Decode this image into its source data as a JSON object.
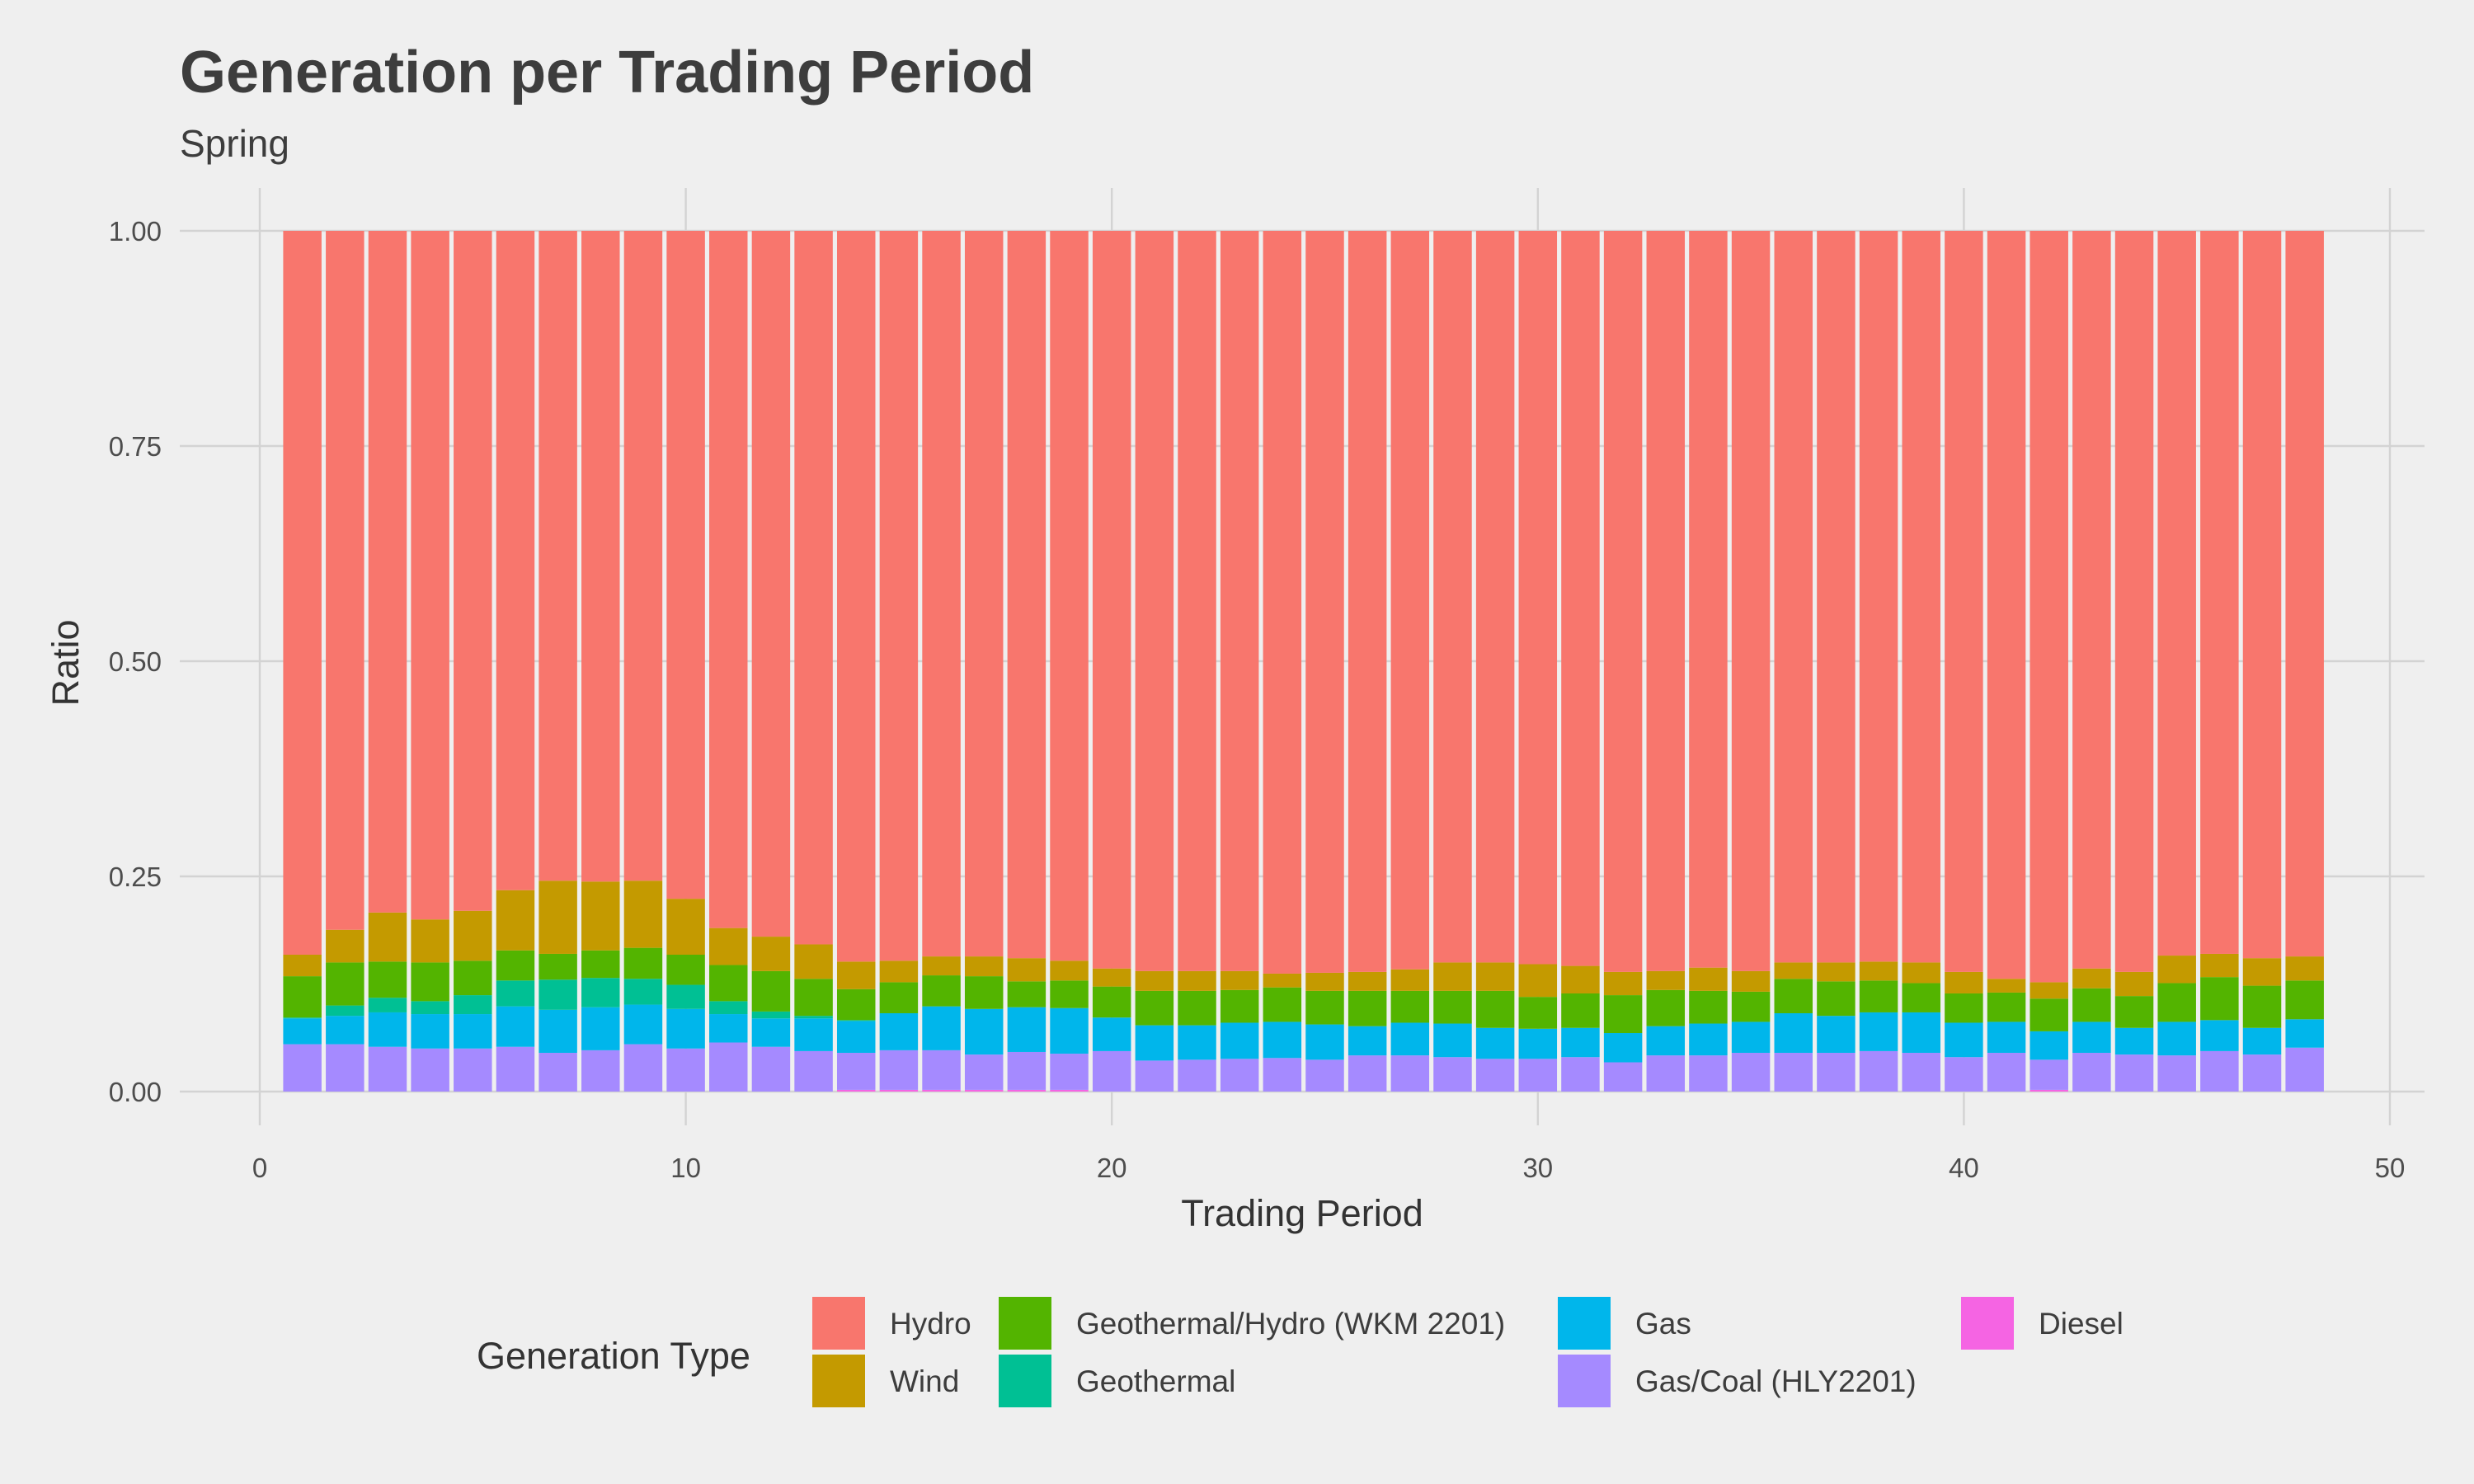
{
  "chart_data": {
    "type": "bar",
    "stacked": true,
    "title": "Generation per Trading Period",
    "subtitle": "Spring",
    "xlabel": "Trading Period",
    "ylabel": "Ratio",
    "xlim": [
      0,
      50
    ],
    "ylim": [
      0,
      1
    ],
    "x_ticks": [
      "0",
      "10",
      "20",
      "30",
      "40",
      "50"
    ],
    "y_ticks": [
      "0.00",
      "0.25",
      "0.50",
      "0.75",
      "1.00"
    ],
    "grid": true,
    "legend_position": "bottom",
    "legend_title": "Generation Type",
    "categories": [
      1,
      2,
      3,
      4,
      5,
      6,
      7,
      8,
      9,
      10,
      11,
      12,
      13,
      14,
      15,
      16,
      17,
      18,
      19,
      20,
      21,
      22,
      23,
      24,
      25,
      26,
      27,
      28,
      29,
      30,
      31,
      32,
      33,
      34,
      35,
      36,
      37,
      38,
      39,
      40,
      41,
      42,
      43,
      44,
      45,
      46,
      47,
      48
    ],
    "series": [
      {
        "name": "Diesel",
        "color": "#F564E3",
        "values": [
          0,
          0,
          0,
          0,
          0,
          0,
          0,
          0,
          0,
          0,
          0,
          0,
          0,
          0.002,
          0.002,
          0.002,
          0.002,
          0.002,
          0.002,
          0,
          0,
          0,
          0,
          0,
          0,
          0,
          0,
          0,
          0,
          0,
          0,
          0,
          0,
          0,
          0,
          0,
          0,
          0,
          0,
          0,
          0,
          0.002,
          0,
          0,
          0,
          0,
          0,
          0
        ]
      },
      {
        "name": "Gas/Coal (HLY2201)",
        "color": "#A58AFF",
        "values": [
          0.055,
          0.055,
          0.052,
          0.05,
          0.05,
          0.052,
          0.045,
          0.048,
          0.055,
          0.05,
          0.057,
          0.052,
          0.047,
          0.043,
          0.046,
          0.046,
          0.041,
          0.044,
          0.042,
          0.047,
          0.036,
          0.037,
          0.038,
          0.039,
          0.037,
          0.042,
          0.042,
          0.04,
          0.038,
          0.038,
          0.04,
          0.034,
          0.042,
          0.042,
          0.045,
          0.045,
          0.045,
          0.047,
          0.045,
          0.04,
          0.045,
          0.035,
          0.045,
          0.043,
          0.042,
          0.047,
          0.043,
          0.051
        ]
      },
      {
        "name": "Gas",
        "color": "#00B6EB",
        "values": [
          0.03,
          0.033,
          0.04,
          0.04,
          0.04,
          0.047,
          0.05,
          0.05,
          0.046,
          0.046,
          0.033,
          0.033,
          0.038,
          0.037,
          0.043,
          0.051,
          0.053,
          0.052,
          0.053,
          0.039,
          0.041,
          0.04,
          0.042,
          0.042,
          0.041,
          0.034,
          0.038,
          0.039,
          0.036,
          0.035,
          0.034,
          0.034,
          0.034,
          0.037,
          0.036,
          0.046,
          0.043,
          0.045,
          0.047,
          0.04,
          0.036,
          0.033,
          0.036,
          0.031,
          0.039,
          0.036,
          0.031,
          0.033
        ]
      },
      {
        "name": "Geothermal",
        "color": "#00C094",
        "values": [
          0.001,
          0.012,
          0.017,
          0.015,
          0.022,
          0.03,
          0.035,
          0.034,
          0.03,
          0.028,
          0.015,
          0.008,
          0.003,
          0.001,
          0,
          0,
          0,
          0,
          0,
          0,
          0,
          0,
          0,
          0,
          0,
          0,
          0,
          0,
          0,
          0,
          0,
          0,
          0,
          0,
          0,
          0,
          0,
          0,
          0,
          0,
          0,
          0,
          0,
          0,
          0,
          0,
          0,
          0
        ]
      },
      {
        "name": "Geothermal/Hydro (WKM 2201)",
        "color": "#53B400",
        "values": [
          0.048,
          0.05,
          0.042,
          0.045,
          0.04,
          0.035,
          0.03,
          0.032,
          0.036,
          0.035,
          0.042,
          0.047,
          0.043,
          0.036,
          0.036,
          0.036,
          0.038,
          0.03,
          0.032,
          0.036,
          0.04,
          0.04,
          0.038,
          0.04,
          0.039,
          0.041,
          0.037,
          0.038,
          0.043,
          0.037,
          0.04,
          0.044,
          0.042,
          0.038,
          0.035,
          0.04,
          0.04,
          0.037,
          0.034,
          0.034,
          0.034,
          0.038,
          0.039,
          0.037,
          0.045,
          0.05,
          0.049,
          0.045
        ]
      },
      {
        "name": "Wind",
        "color": "#C49A00",
        "values": [
          0.025,
          0.038,
          0.057,
          0.05,
          0.058,
          0.07,
          0.085,
          0.08,
          0.078,
          0.065,
          0.043,
          0.04,
          0.04,
          0.032,
          0.025,
          0.022,
          0.023,
          0.027,
          0.023,
          0.021,
          0.023,
          0.023,
          0.022,
          0.016,
          0.021,
          0.022,
          0.025,
          0.033,
          0.033,
          0.038,
          0.032,
          0.027,
          0.022,
          0.027,
          0.024,
          0.019,
          0.022,
          0.022,
          0.024,
          0.025,
          0.016,
          0.019,
          0.023,
          0.028,
          0.032,
          0.027,
          0.032,
          0.028
        ]
      },
      {
        "name": "Hydro",
        "color": "#F8766D",
        "values": [
          0.841,
          0.812,
          0.792,
          0.8,
          0.79,
          0.766,
          0.755,
          0.756,
          0.755,
          0.776,
          0.81,
          0.82,
          0.829,
          0.849,
          0.848,
          0.843,
          0.843,
          0.845,
          0.848,
          0.857,
          0.86,
          0.86,
          0.86,
          0.863,
          0.862,
          0.861,
          0.858,
          0.85,
          0.85,
          0.852,
          0.854,
          0.861,
          0.86,
          0.856,
          0.86,
          0.85,
          0.85,
          0.849,
          0.85,
          0.861,
          0.869,
          0.873,
          0.857,
          0.861,
          0.842,
          0.84,
          0.845,
          0.843
        ]
      }
    ]
  },
  "legend": {
    "title": "Generation Type",
    "items": [
      {
        "label": "Hydro",
        "color": "#F8766D"
      },
      {
        "label": "Wind",
        "color": "#C49A00"
      },
      {
        "label": "Geothermal/Hydro (WKM 2201)",
        "color": "#53B400"
      },
      {
        "label": "Geothermal",
        "color": "#00C094"
      },
      {
        "label": "Gas",
        "color": "#00B6EB"
      },
      {
        "label": "Gas/Coal (HLY2201)",
        "color": "#A58AFF"
      },
      {
        "label": "Diesel",
        "color": "#F564E3"
      }
    ]
  }
}
